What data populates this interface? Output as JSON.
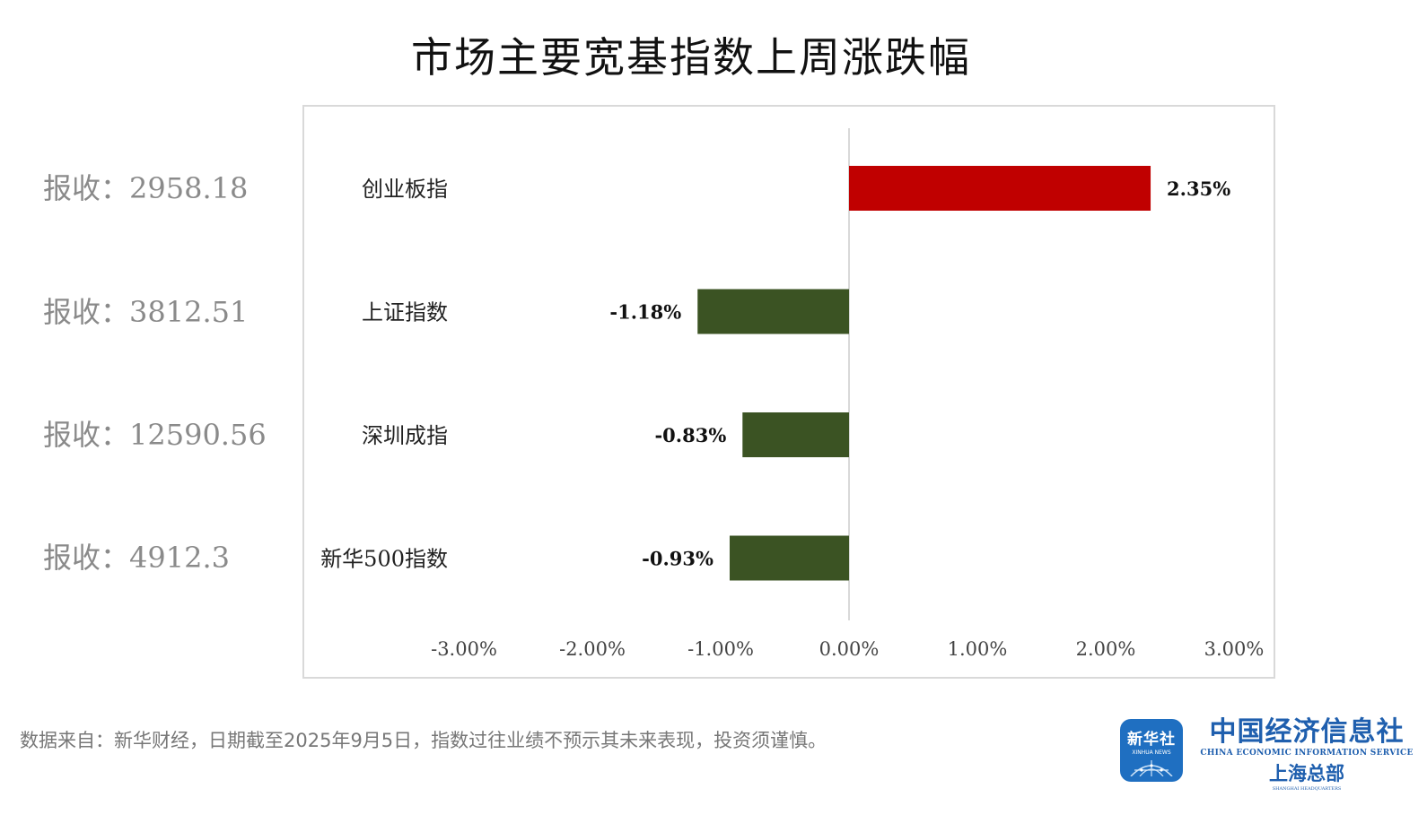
{
  "chart_data": {
    "type": "bar",
    "orientation": "horizontal",
    "title": "市场主要宽基指数上周涨跌幅",
    "categories": [
      "创业板指",
      "上证指数",
      "深圳成指",
      "新华500指数"
    ],
    "values": [
      2.35,
      -1.18,
      -0.83,
      -0.93
    ],
    "data_labels": [
      "2.35%",
      "-1.18%",
      "-0.83%",
      "-0.93%"
    ],
    "closes": [
      "报收：2958.18",
      "报收：3812.51",
      "报收：12590.56",
      "报收：4912.3"
    ],
    "xlim": [
      -3,
      3
    ],
    "x_ticks": [
      -3,
      -2,
      -1,
      0,
      1,
      2,
      3
    ],
    "x_tick_labels": [
      "-3.00%",
      "-2.00%",
      "-1.00%",
      "0.00%",
      "1.00%",
      "2.00%",
      "3.00%"
    ],
    "grid": false,
    "colors": {
      "positive": "#c00000",
      "negative": "#3b5323",
      "axis": "#d9d9d9"
    }
  },
  "footer": {
    "note": "数据来自：新华财经，日期截至2025年9月5日，指数过往业绩不预示其未来表现，投资须谨慎。"
  },
  "logo": {
    "badge_cn": "新华社",
    "badge_en": "XINHUA NEWS",
    "name_cn": "中国经济信息社",
    "name_en": "CHINA ECONOMIC INFORMATION SERVICE",
    "branch_cn": "上海总部",
    "branch_en": "SHANGHAI HEADQUARTERS",
    "brand_color": "#1f5fae"
  }
}
